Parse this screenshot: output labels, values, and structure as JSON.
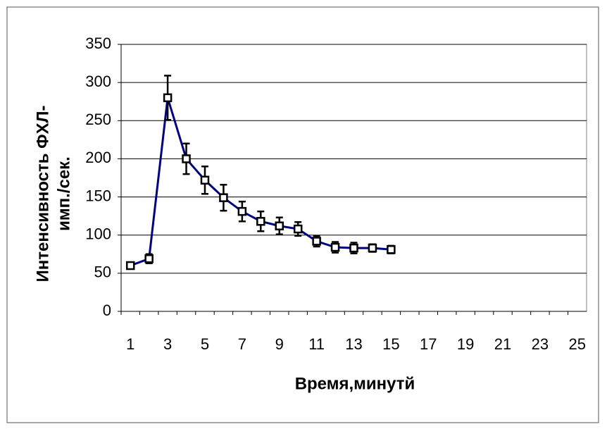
{
  "chart_data": {
    "type": "line",
    "y_label": [
      "Интенсивность ФХЛ-",
      "имп./сек."
    ],
    "x_label": "Время,минутй",
    "categories": [
      1,
      null,
      3,
      null,
      5,
      null,
      7,
      null,
      9,
      null,
      11,
      null,
      13,
      null,
      15,
      null,
      17,
      null,
      19,
      null,
      21,
      null,
      23,
      null,
      25
    ],
    "values": [
      60,
      69,
      280,
      200,
      172,
      149,
      131,
      118,
      112,
      108,
      92,
      84,
      83,
      83,
      81,
      null,
      null,
      null,
      null,
      null,
      null,
      null,
      null,
      null,
      null
    ],
    "errors": [
      3,
      6,
      29,
      20,
      18,
      17,
      13,
      13,
      11,
      9,
      7,
      7,
      7,
      5,
      5,
      null,
      null,
      null,
      null,
      null,
      null,
      null,
      null,
      null,
      null
    ],
    "color": "#000080",
    "ylim": [
      0,
      350
    ],
    "yticks": [
      0,
      50,
      100,
      150,
      200,
      250,
      300,
      350
    ],
    "grid": true
  }
}
